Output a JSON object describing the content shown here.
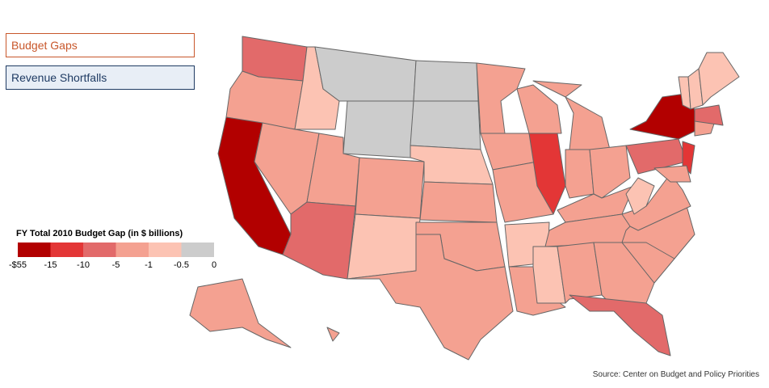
{
  "buttons": [
    {
      "label": "Budget Gaps"
    },
    {
      "label": "Revenue Shortfalls"
    }
  ],
  "legend": {
    "title": "FY Total 2010 Budget Gap (in $ billions)",
    "colors": [
      "#b20000",
      "#e33636",
      "#e26a6a",
      "#f4a191",
      "#fcc3b3",
      "#cccccc"
    ],
    "labels": [
      "-$55",
      "-15",
      "-10",
      "-5",
      "-1",
      "-0.5",
      "0"
    ]
  },
  "source": "Source: Center on Budget and Policy Priorities"
}
